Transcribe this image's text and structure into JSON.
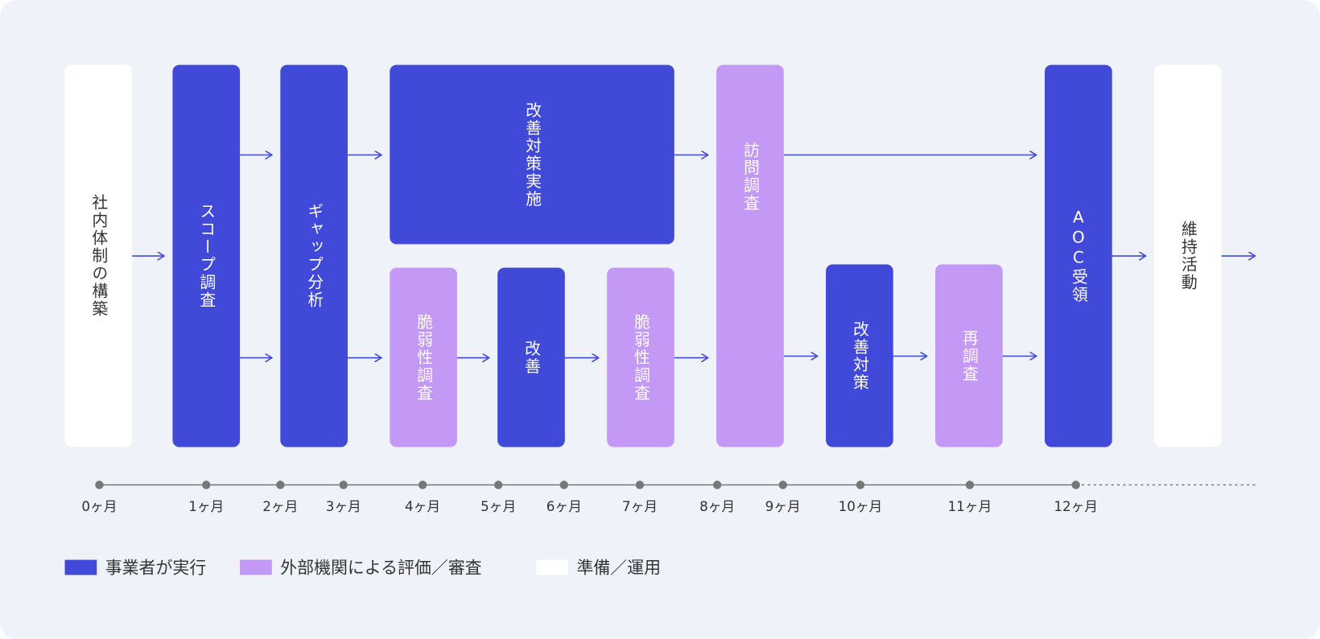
{
  "nodes": [
    {
      "label": "社内体制の構築",
      "color": "#ffffff"
    },
    {
      "label": "スコープ調査",
      "color": "#4149d8"
    },
    {
      "label": "ギャップ分析",
      "color": "#4149d8"
    },
    {
      "label": "改善対策実施",
      "color": "#4149d8"
    },
    {
      "label": "脆弱性調査",
      "color": "#c399f5"
    },
    {
      "label": "改善",
      "color": "#4149d8"
    },
    {
      "label": "脆弱性調査",
      "color": "#c399f5"
    },
    {
      "label": "訪問調査",
      "color": "#c399f5"
    },
    {
      "label": "改善対策",
      "color": "#4149d8"
    },
    {
      "label": "再調査",
      "color": "#c399f5"
    },
    {
      "label": "AOC受領",
      "color": "#4149d8"
    },
    {
      "label": "維持活動",
      "color": "#ffffff"
    }
  ],
  "timeline": [
    "0ヶ月",
    "1ヶ月",
    "2ヶ月",
    "3ヶ月",
    "4ヶ月",
    "5ヶ月",
    "6ヶ月",
    "7ヶ月",
    "8ヶ月",
    "9ヶ月",
    "10ヶ月",
    "11ヶ月",
    "12ヶ月"
  ],
  "legend": [
    {
      "label": "事業者が実行",
      "color": "#4149d8"
    },
    {
      "label": "外部機関による評価／審査",
      "color": "#c399f5"
    },
    {
      "label": "準備／運用",
      "color": "#ffffff"
    }
  ]
}
